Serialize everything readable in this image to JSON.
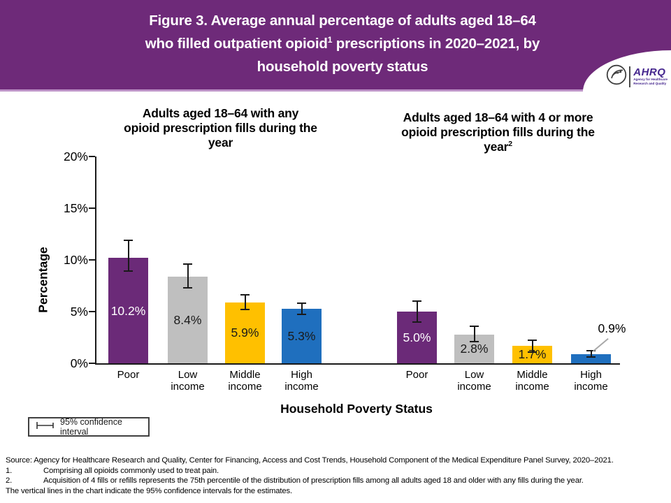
{
  "header": {
    "bg_color": "#6E2A79",
    "title_lines": [
      [
        {
          "t": "Figure 3. Average annual percentage of adults aged 18–64"
        }
      ],
      [
        {
          "t": "who filled outpatient opioid"
        },
        {
          "t": "1",
          "sup": true
        },
        {
          "t": " prescriptions in 2020–2021, by"
        }
      ],
      [
        {
          "t": "household poverty status"
        }
      ]
    ],
    "logo": {
      "org": "AHRQ",
      "tagline_line1": "Agency for Healthcare",
      "tagline_line2": "Research and Quality"
    }
  },
  "chart_data": {
    "type": "bar",
    "ylabel": "Percentage",
    "xlabel": "Household Poverty Status",
    "ylim": [
      0,
      20
    ],
    "yticks": [
      {
        "value": 0,
        "label": "0%"
      },
      {
        "value": 5,
        "label": "5%"
      },
      {
        "value": 10,
        "label": "10%"
      },
      {
        "value": 15,
        "label": "15%"
      },
      {
        "value": 20,
        "label": "20%"
      }
    ],
    "legend": "95% confidence interval",
    "categories": [
      "Poor",
      "Low income",
      "Middle income",
      "High income"
    ],
    "series_colors": {
      "Poor": "#6B2A78",
      "Low income": "#BFBFBF",
      "Middle income": "#FFC000",
      "High income": "#1F6FBE"
    },
    "groups": [
      {
        "title_lines": [
          [
            {
              "t": "Adults aged 18–64 with any"
            }
          ],
          [
            {
              "t": "opioid prescription fills during the"
            }
          ],
          [
            {
              "t": "year"
            }
          ]
        ],
        "bars": [
          {
            "category": "Poor",
            "value": 10.2,
            "label": "10.2%",
            "ci": [
              8.9,
              11.9
            ],
            "color": "#6B2A78",
            "label_color": "#FFFFFF"
          },
          {
            "category": "Low income",
            "value": 8.4,
            "label": "8.4%",
            "ci": [
              7.3,
              9.6
            ],
            "color": "#BFBFBF",
            "label_color": "#1A1A1A"
          },
          {
            "category": "Middle income",
            "value": 5.9,
            "label": "5.9%",
            "ci": [
              5.2,
              6.6
            ],
            "color": "#FFC000",
            "label_color": "#1A1A1A"
          },
          {
            "category": "High income",
            "value": 5.3,
            "label": "5.3%",
            "ci": [
              4.7,
              5.8
            ],
            "color": "#1F6FBE",
            "label_color": "#1A1A1A"
          }
        ]
      },
      {
        "title_lines": [
          [
            {
              "t": "Adults aged 18–64 with 4 or more"
            }
          ],
          [
            {
              "t": "opioid prescription fills during the"
            }
          ],
          [
            {
              "t": "year"
            },
            {
              "t": "2",
              "sup": true
            }
          ]
        ],
        "bars": [
          {
            "category": "Poor",
            "value": 5.0,
            "label": "5.0%",
            "ci": [
              4.0,
              6.0
            ],
            "color": "#6B2A78",
            "label_color": "#FFFFFF"
          },
          {
            "category": "Low income",
            "value": 2.8,
            "label": "2.8%",
            "ci": [
              2.1,
              3.6
            ],
            "color": "#BFBFBF",
            "label_color": "#1A1A1A"
          },
          {
            "category": "Middle income",
            "value": 1.7,
            "label": "1.7%",
            "ci": [
              1.1,
              2.2
            ],
            "color": "#FFC000",
            "label_color": "#1A1A1A"
          },
          {
            "category": "High income",
            "value": 0.9,
            "label": "0.9%",
            "ci": [
              0.6,
              1.2
            ],
            "color": "#1F6FBE",
            "label_color": "#1A1A1A",
            "label_outside": true
          }
        ]
      }
    ]
  },
  "footer": {
    "rows": [
      {
        "num": "",
        "text": "Source: Agency for Healthcare Research and Quality, Center for Financing, Access and Cost Trends, Household Component of the Medical Expenditure Panel Survey, 2020–2021."
      },
      {
        "num": "1.",
        "text": "Comprising all opioids commonly used to treat pain."
      },
      {
        "num": "2.",
        "text": "Acquisition of 4 fills or refills represents the 75th percentile of the distribution of prescription fills among all adults aged 18 and older with any fills during the year."
      },
      {
        "num": "",
        "text": "The vertical lines in the chart indicate the 95% confidence intervals for the estimates."
      }
    ]
  }
}
